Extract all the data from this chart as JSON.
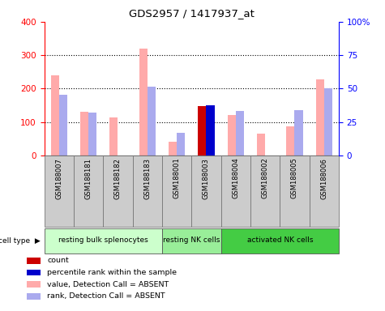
{
  "title": "GDS2957 / 1417937_at",
  "samples": [
    "GSM188007",
    "GSM188181",
    "GSM188182",
    "GSM188183",
    "GSM188001",
    "GSM188003",
    "GSM188004",
    "GSM188002",
    "GSM188005",
    "GSM188006"
  ],
  "cell_types": [
    {
      "label": "resting bulk splenocytes",
      "start": 0,
      "end": 4,
      "color": "#ccffcc"
    },
    {
      "label": "resting NK cells",
      "start": 4,
      "end": 6,
      "color": "#99ee99"
    },
    {
      "label": "activated NK cells",
      "start": 6,
      "end": 10,
      "color": "#44cc44"
    }
  ],
  "value_bars": [
    240,
    130,
    113,
    320,
    40,
    null,
    120,
    65,
    88,
    228
  ],
  "rank_bars": [
    182,
    128,
    null,
    207,
    68,
    null,
    134,
    null,
    136,
    200
  ],
  "count_bar_idx": 5,
  "count_bar_val": 148,
  "percentile_bar_idx": 5,
  "percentile_bar_val": 150,
  "left_ylim": [
    0,
    400
  ],
  "right_ylim": [
    0,
    100
  ],
  "left_yticks": [
    0,
    100,
    200,
    300,
    400
  ],
  "right_yticks": [
    0,
    25,
    50,
    75,
    100
  ],
  "right_yticklabels": [
    "0",
    "25",
    "50",
    "75",
    "100%"
  ],
  "bar_width": 0.28,
  "value_color": "#ffaaaa",
  "rank_color": "#aaaaee",
  "count_color": "#cc0000",
  "percentile_color": "#0000cc",
  "legend_items": [
    {
      "color": "#cc0000",
      "label": "count"
    },
    {
      "color": "#0000cc",
      "label": "percentile rank within the sample"
    },
    {
      "color": "#ffaaaa",
      "label": "value, Detection Call = ABSENT"
    },
    {
      "color": "#aaaaee",
      "label": "rank, Detection Call = ABSENT"
    }
  ]
}
